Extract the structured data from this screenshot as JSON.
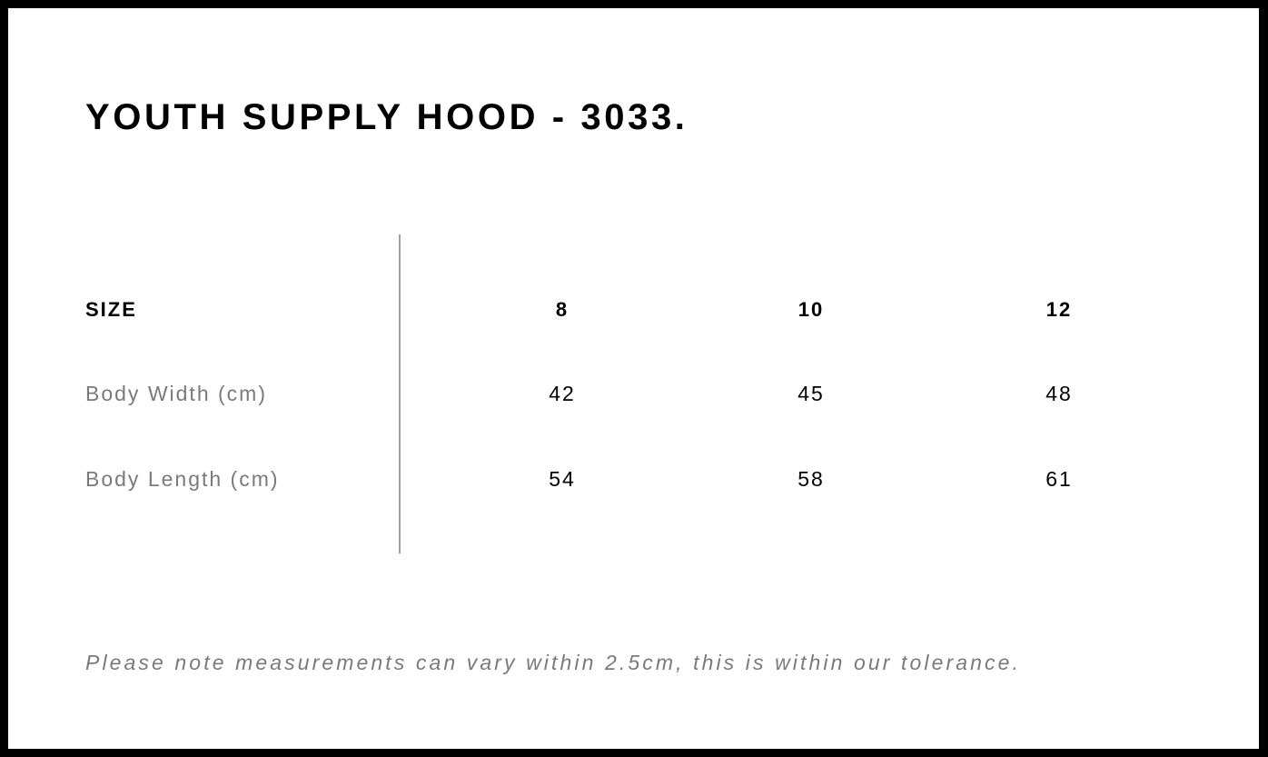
{
  "title": "YOUTH SUPPLY HOOD - 3033.",
  "table": {
    "header": {
      "label": "SIZE",
      "sizes": [
        "8",
        "10",
        "12"
      ]
    },
    "rows": [
      {
        "label": "Body Width (cm)",
        "values": [
          "42",
          "45",
          "48"
        ]
      },
      {
        "label": "Body Length (cm)",
        "values": [
          "54",
          "58",
          "61"
        ]
      }
    ]
  },
  "note": "Please note measurements can vary within 2.5cm, this is within our tolerance."
}
